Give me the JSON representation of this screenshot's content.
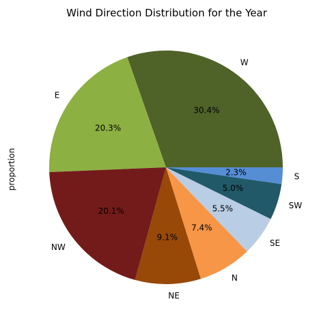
{
  "chart_data": {
    "type": "pie",
    "title": "Wind Direction Distribution for the Year",
    "ylabel": "proportion",
    "start_angle_deg": 0,
    "direction": "counterclockwise",
    "slices": [
      {
        "label": "W",
        "value": 30.4,
        "pct_label": "30.4%",
        "color": "#4f6228"
      },
      {
        "label": "E",
        "value": 20.3,
        "pct_label": "20.3%",
        "color": "#8db042"
      },
      {
        "label": "NW",
        "value": 20.1,
        "pct_label": "20.1%",
        "color": "#731b1b"
      },
      {
        "label": "NE",
        "value": 9.1,
        "pct_label": "9.1%",
        "color": "#984807"
      },
      {
        "label": "N",
        "value": 7.4,
        "pct_label": "7.4%",
        "color": "#f79646"
      },
      {
        "label": "SE",
        "value": 5.5,
        "pct_label": "5.5%",
        "color": "#b9cde5"
      },
      {
        "label": "SW",
        "value": 5.0,
        "pct_label": "5.0%",
        "color": "#215968"
      },
      {
        "label": "S",
        "value": 2.3,
        "pct_label": "2.3%",
        "color": "#558ed5"
      }
    ]
  }
}
